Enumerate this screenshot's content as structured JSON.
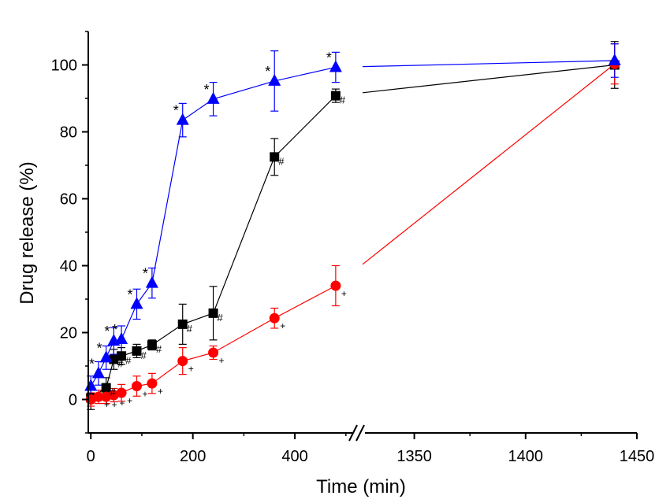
{
  "chart_data": {
    "type": "line",
    "xlabel": "Time (min)",
    "ylabel": "Drug release (%)",
    "ylim": [
      -10,
      110
    ],
    "x_axis_broken": true,
    "x_segments": [
      {
        "range": [
          -5,
          525
        ],
        "ticks": [
          0,
          200,
          400
        ],
        "tick_labels": [
          "0",
          "200",
          "400"
        ]
      },
      {
        "range": [
          1325,
          1450
        ],
        "ticks": [
          1350,
          1400,
          1450
        ],
        "tick_labels": [
          "1350",
          "1400",
          "1450"
        ]
      }
    ],
    "y_ticks": [
      0,
      20,
      40,
      60,
      80,
      100
    ],
    "y_tick_labels": [
      "0",
      "20",
      "40",
      "60",
      "80",
      "100"
    ],
    "series": [
      {
        "marker": "square",
        "color": "#000000",
        "annotation": "#",
        "points": [
          {
            "x": 0,
            "y": 0.5,
            "err": 3.5
          },
          {
            "x": 30,
            "y": 3.5,
            "err": 3
          },
          {
            "x": 45,
            "y": 12,
            "err": 3
          },
          {
            "x": 60,
            "y": 13,
            "err": 2.5
          },
          {
            "x": 90,
            "y": 14.5,
            "err": 2
          },
          {
            "x": 120,
            "y": 16.3,
            "err": 1.5
          },
          {
            "x": 180,
            "y": 22.5,
            "err": 6
          },
          {
            "x": 240,
            "y": 25.8,
            "err": 8
          },
          {
            "x": 360,
            "y": 72.5,
            "err": 5.5
          },
          {
            "x": 480,
            "y": 90.8,
            "err": 2
          },
          {
            "x": 1440,
            "y": 100,
            "err": 7
          }
        ]
      },
      {
        "marker": "circle",
        "color": "#ff0000",
        "annotation": "+",
        "points": [
          {
            "x": 0,
            "y": 0,
            "err": 2
          },
          {
            "x": 15,
            "y": 0.8,
            "err": 2
          },
          {
            "x": 30,
            "y": 0.8,
            "err": 2
          },
          {
            "x": 45,
            "y": 1.3,
            "err": 2
          },
          {
            "x": 60,
            "y": 2,
            "err": 2.5
          },
          {
            "x": 90,
            "y": 4,
            "err": 3
          },
          {
            "x": 120,
            "y": 4.8,
            "err": 3
          },
          {
            "x": 180,
            "y": 11.5,
            "err": 4
          },
          {
            "x": 240,
            "y": 14,
            "err": 2
          },
          {
            "x": 360,
            "y": 24.3,
            "err": 3
          },
          {
            "x": 480,
            "y": 34,
            "err": 6
          },
          {
            "x": 1440,
            "y": 100.3,
            "err": 6
          }
        ]
      },
      {
        "marker": "triangle",
        "color": "#0000ff",
        "annotation": "*",
        "points": [
          {
            "x": 0,
            "y": 4,
            "err": 3
          },
          {
            "x": 15,
            "y": 7.8,
            "err": 3.5
          },
          {
            "x": 30,
            "y": 12.5,
            "err": 3.5
          },
          {
            "x": 45,
            "y": 17.5,
            "err": 4
          },
          {
            "x": 60,
            "y": 18,
            "err": 4
          },
          {
            "x": 90,
            "y": 28.5,
            "err": 4.5
          },
          {
            "x": 120,
            "y": 34.8,
            "err": 4.5
          },
          {
            "x": 180,
            "y": 83.5,
            "err": 5
          },
          {
            "x": 240,
            "y": 89.8,
            "err": 5
          },
          {
            "x": 360,
            "y": 95.2,
            "err": 9
          },
          {
            "x": 480,
            "y": 99.3,
            "err": 4.5
          },
          {
            "x": 1440,
            "y": 101.3,
            "err": 5
          }
        ]
      }
    ]
  }
}
